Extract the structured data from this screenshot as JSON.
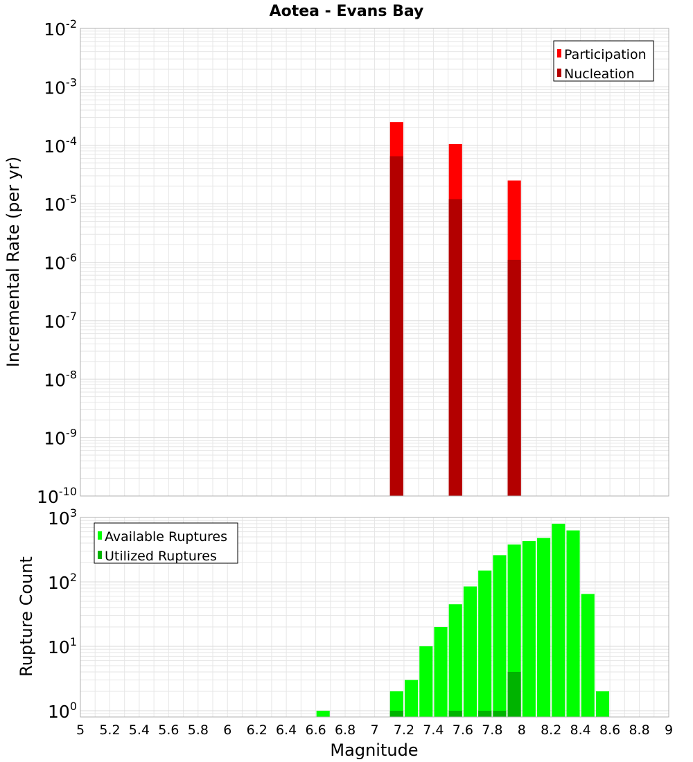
{
  "colors": {
    "participation": "#ff0000",
    "nucleation": "#b30000",
    "available": "#00ff00",
    "utilized": "#00b300",
    "grid": "#e6e6e6",
    "frame": "#b0b0b0"
  },
  "chart_data": [
    {
      "type": "bar",
      "panel": "top",
      "title": "Aotea - Evans Bay",
      "xlabel": "",
      "ylabel": "Incremental Rate (per yr)",
      "xlim": [
        5,
        9
      ],
      "ylim": [
        1e-10,
        0.01
      ],
      "yscale": "log",
      "grid": true,
      "legend_position": "top-right",
      "y_ticks": [
        {
          "base": "10",
          "exp": "-10",
          "value": 1e-10
        },
        {
          "base": "10",
          "exp": "-9",
          "value": 1e-09
        },
        {
          "base": "10",
          "exp": "-8",
          "value": 1e-08
        },
        {
          "base": "10",
          "exp": "-7",
          "value": 1e-07
        },
        {
          "base": "10",
          "exp": "-6",
          "value": 1e-06
        },
        {
          "base": "10",
          "exp": "-5",
          "value": 1e-05
        },
        {
          "base": "10",
          "exp": "-4",
          "value": 0.0001
        },
        {
          "base": "10",
          "exp": "-3",
          "value": 0.001
        },
        {
          "base": "10",
          "exp": "-2",
          "value": 0.01
        }
      ],
      "bar_width": 0.09,
      "series": [
        {
          "name": "Participation",
          "x": [
            7.15,
            7.55,
            7.95
          ],
          "values": [
            0.00025,
            0.000105,
            2.5e-05
          ]
        },
        {
          "name": "Nucleation",
          "x": [
            7.15,
            7.55,
            7.95
          ],
          "values": [
            6.5e-05,
            1.2e-05,
            1.1e-06
          ]
        }
      ]
    },
    {
      "type": "bar",
      "panel": "bottom",
      "title": "",
      "xlabel": "Magnitude",
      "ylabel": "Rupture Count",
      "xlim": [
        5,
        9
      ],
      "ylim": [
        0.8,
        1000
      ],
      "yscale": "log",
      "grid": true,
      "legend_position": "top-left",
      "x_ticks": [
        "5",
        "5.2",
        "5.4",
        "5.6",
        "5.8",
        "6",
        "6.2",
        "6.4",
        "6.6",
        "6.8",
        "7",
        "7.2",
        "7.4",
        "7.6",
        "7.8",
        "8",
        "8.2",
        "8.4",
        "8.6",
        "8.8",
        "9"
      ],
      "y_ticks": [
        {
          "base": "10",
          "exp": "0",
          "value": 1
        },
        {
          "base": "10",
          "exp": "1",
          "value": 10
        },
        {
          "base": "10",
          "exp": "2",
          "value": 100
        },
        {
          "base": "10",
          "exp": "3",
          "value": 1000
        }
      ],
      "bar_width": 0.09,
      "series": [
        {
          "name": "Available Ruptures",
          "x": [
            6.65,
            7.15,
            7.25,
            7.35,
            7.45,
            7.55,
            7.65,
            7.75,
            7.85,
            7.95,
            8.05,
            8.15,
            8.25,
            8.35,
            8.45,
            8.55
          ],
          "values": [
            1,
            2,
            3,
            10,
            20,
            45,
            85,
            150,
            260,
            380,
            430,
            480,
            800,
            630,
            65,
            2
          ]
        },
        {
          "name": "Utilized Ruptures",
          "x": [
            7.15,
            7.55,
            7.75,
            7.85,
            7.95
          ],
          "values": [
            1,
            1,
            1,
            1,
            4
          ]
        }
      ]
    }
  ]
}
